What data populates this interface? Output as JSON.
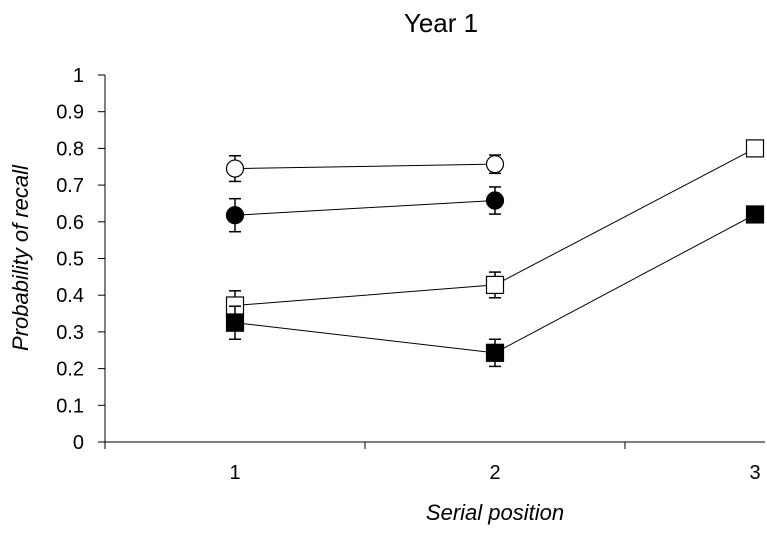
{
  "chart_data": {
    "type": "line",
    "title": "Year 1",
    "xlabel": "Serial position",
    "ylabel": "Probability of recall",
    "x": [
      1,
      2,
      3
    ],
    "ylim": [
      0,
      1
    ],
    "yticks": [
      "0",
      "0.1",
      "0.2",
      "0.3",
      "0.4",
      "0.5",
      "0.6",
      "0.7",
      "0.8",
      "0.9",
      "1"
    ],
    "xticks": [
      "1",
      "2",
      "3"
    ],
    "grid": false,
    "series": [
      {
        "marker": "circle",
        "fill": "#ffffff",
        "values": [
          0.745,
          0.757,
          null
        ],
        "errors": [
          0.035,
          0.025,
          null
        ]
      },
      {
        "marker": "circle",
        "fill": "#000000",
        "values": [
          0.618,
          0.658,
          null
        ],
        "errors": [
          0.045,
          0.037,
          null
        ]
      },
      {
        "marker": "square",
        "fill": "#ffffff",
        "values": [
          0.372,
          0.428,
          0.8
        ],
        "errors": [
          0.04,
          0.035,
          0.015
        ]
      },
      {
        "marker": "square",
        "fill": "#000000",
        "values": [
          0.325,
          0.243,
          0.62
        ],
        "errors": [
          0.045,
          0.037,
          0.02
        ]
      }
    ]
  }
}
